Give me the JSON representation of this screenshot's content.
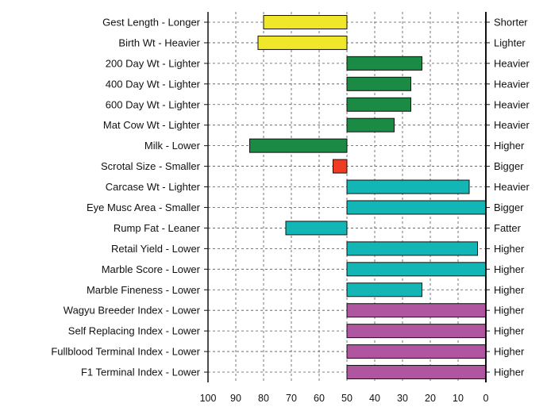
{
  "chart_data": {
    "type": "bar",
    "orientation": "horizontal",
    "title": "",
    "xlabel": "",
    "ylabel": "",
    "xlim": [
      100,
      0
    ],
    "x_reversed": true,
    "baseline": 50,
    "grid": true,
    "x_ticks": [
      "100",
      "90",
      "80",
      "70",
      "60",
      "50",
      "40",
      "30",
      "20",
      "10",
      "0"
    ],
    "colors": {
      "yellow": "#f0e62a",
      "green": "#1a8a45",
      "red": "#ee3b24",
      "teal": "#13b6b5",
      "purple": "#b0559f"
    },
    "rows": [
      {
        "left_label": "Gest Length - Longer",
        "right_label": "Shorter",
        "value": 80,
        "color": "#f0e62a"
      },
      {
        "left_label": "Birth Wt - Heavier",
        "right_label": "Lighter",
        "value": 82,
        "color": "#f0e62a"
      },
      {
        "left_label": "200 Day Wt - Lighter",
        "right_label": "Heavier",
        "value": 23,
        "color": "#1a8a45"
      },
      {
        "left_label": "400 Day Wt - Lighter",
        "right_label": "Heavier",
        "value": 27,
        "color": "#1a8a45"
      },
      {
        "left_label": "600 Day Wt - Lighter",
        "right_label": "Heavier",
        "value": 27,
        "color": "#1a8a45"
      },
      {
        "left_label": "Mat Cow Wt - Lighter",
        "right_label": "Heavier",
        "value": 33,
        "color": "#1a8a45"
      },
      {
        "left_label": "Milk - Lower",
        "right_label": "Higher",
        "value": 85,
        "color": "#1a8a45"
      },
      {
        "left_label": "Scrotal Size - Smaller",
        "right_label": "Bigger",
        "value": 55,
        "color": "#ee3b24"
      },
      {
        "left_label": "Carcase Wt - Lighter",
        "right_label": "Heavier",
        "value": 6,
        "color": "#13b6b5"
      },
      {
        "left_label": "Eye Musc Area - Smaller",
        "right_label": "Bigger",
        "value": 0,
        "color": "#13b6b5"
      },
      {
        "left_label": "Rump Fat - Leaner",
        "right_label": "Fatter",
        "value": 72,
        "color": "#13b6b5"
      },
      {
        "left_label": "Retail Yield - Lower",
        "right_label": "Higher",
        "value": 3,
        "color": "#13b6b5"
      },
      {
        "left_label": "Marble Score - Lower",
        "right_label": "Higher",
        "value": 0,
        "color": "#13b6b5"
      },
      {
        "left_label": "Marble Fineness - Lower",
        "right_label": "Higher",
        "value": 23,
        "color": "#13b6b5"
      },
      {
        "left_label": "Wagyu Breeder Index - Lower",
        "right_label": "Higher",
        "value": 0,
        "color": "#b0559f"
      },
      {
        "left_label": "Self Replacing Index - Lower",
        "right_label": "Higher",
        "value": 0,
        "color": "#b0559f"
      },
      {
        "left_label": "Fullblood Terminal Index - Lower",
        "right_label": "Higher",
        "value": 0,
        "color": "#b0559f"
      },
      {
        "left_label": "F1 Terminal Index - Lower",
        "right_label": "Higher",
        "value": 0,
        "color": "#b0559f"
      }
    ]
  }
}
